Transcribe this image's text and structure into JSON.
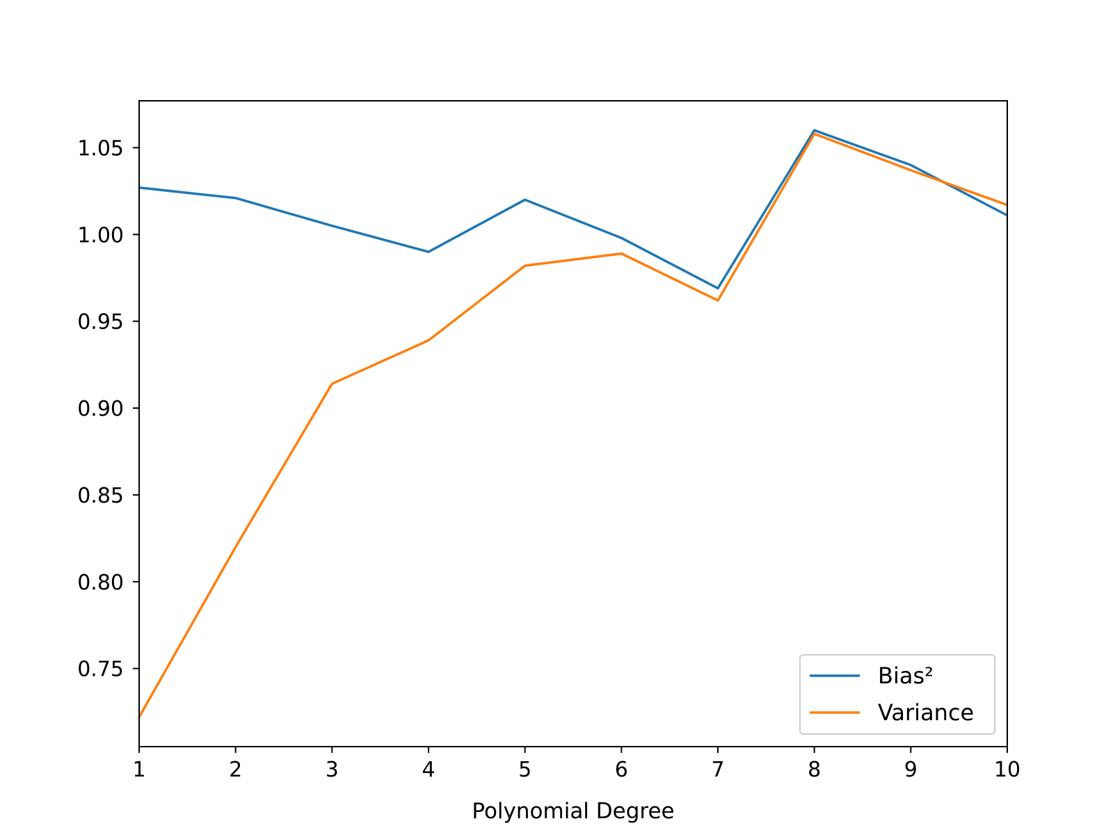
{
  "chart_data": {
    "type": "line",
    "title": "",
    "xlabel": "Polynomial Degree",
    "ylabel": "",
    "x": [
      1,
      2,
      3,
      4,
      5,
      6,
      7,
      8,
      9,
      10
    ],
    "xlim": [
      1,
      10
    ],
    "ylim": [
      0.705,
      1.077
    ],
    "xticks": [
      1,
      2,
      3,
      4,
      5,
      6,
      7,
      8,
      9,
      10
    ],
    "xtick_labels": [
      "1",
      "2",
      "3",
      "4",
      "5",
      "6",
      "7",
      "8",
      "9",
      "10"
    ],
    "yticks": [
      0.75,
      0.8,
      0.85,
      0.9,
      0.95,
      1.0,
      1.05
    ],
    "ytick_labels": [
      "0.75",
      "0.80",
      "0.85",
      "0.90",
      "0.95",
      "1.00",
      "1.05"
    ],
    "grid": false,
    "legend": {
      "position": "lower-right"
    },
    "series": [
      {
        "name": "Bias²",
        "color": "#1f77b4",
        "values": [
          1.027,
          1.021,
          1.005,
          0.99,
          1.02,
          0.998,
          0.969,
          1.06,
          1.04,
          1.011
        ]
      },
      {
        "name": "Variance",
        "color": "#ff7f0e",
        "values": [
          0.722,
          0.82,
          0.914,
          0.939,
          0.982,
          0.989,
          0.962,
          1.058,
          1.037,
          1.017
        ]
      }
    ]
  }
}
